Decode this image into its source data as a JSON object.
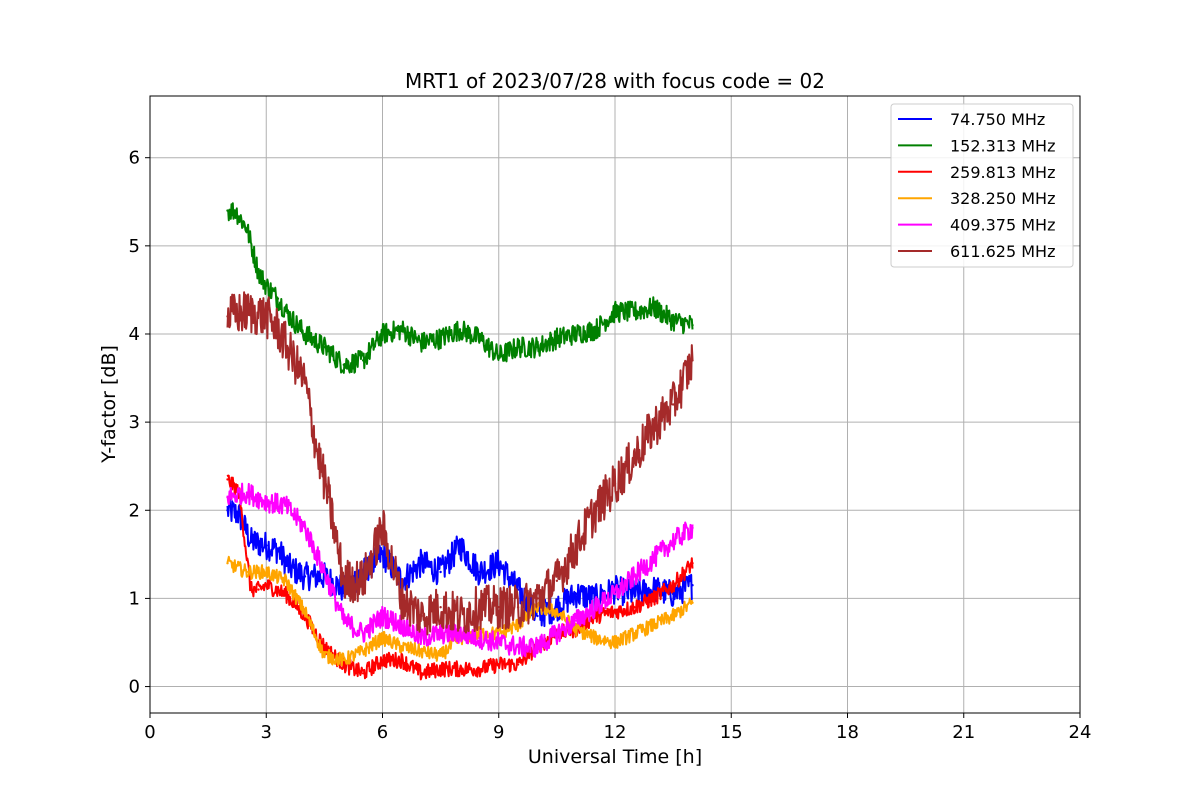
{
  "chart_data": {
    "type": "line",
    "title": "MRT1 of 2023/07/28 with focus code = 02",
    "xlabel": "Universal Time [h]",
    "ylabel": "Y-factor [dB]",
    "xlim": [
      0,
      24
    ],
    "ylim": [
      -0.3,
      6.7
    ],
    "xticks": [
      0,
      3,
      6,
      9,
      12,
      15,
      18,
      21,
      24
    ],
    "yticks": [
      0,
      1,
      2,
      3,
      4,
      5,
      6
    ],
    "grid": true,
    "legend_position": "top-right",
    "series": [
      {
        "name": "  74.750 MHz",
        "color": "#0000ff",
        "x": [
          2.0,
          2.3,
          2.6,
          3.0,
          3.3,
          3.6,
          4.0,
          4.5,
          5.0,
          5.5,
          6.0,
          6.5,
          7.0,
          7.5,
          8.0,
          8.5,
          9.0,
          9.5,
          10.0,
          10.5,
          11.0,
          11.5,
          12.0,
          12.5,
          13.0,
          13.5,
          14.0
        ],
        "y": [
          2.0,
          1.95,
          1.65,
          1.6,
          1.55,
          1.35,
          1.25,
          1.25,
          1.1,
          1.3,
          1.5,
          1.2,
          1.4,
          1.3,
          1.6,
          1.3,
          1.4,
          1.1,
          0.8,
          0.9,
          1.05,
          1.0,
          1.1,
          1.05,
          1.1,
          1.05,
          1.15
        ],
        "noise": 0.16
      },
      {
        "name": "152.313 MHz",
        "color": "#008000",
        "x": [
          2.0,
          2.2,
          2.5,
          2.8,
          3.0,
          3.3,
          3.6,
          4.0,
          4.5,
          5.0,
          5.5,
          6.0,
          6.5,
          7.0,
          7.5,
          8.0,
          8.5,
          9.0,
          9.5,
          10.0,
          10.5,
          11.0,
          11.5,
          12.0,
          12.5,
          13.0,
          13.5,
          14.0
        ],
        "y": [
          5.4,
          5.4,
          5.2,
          4.7,
          4.55,
          4.4,
          4.2,
          4.0,
          3.85,
          3.65,
          3.7,
          4.0,
          4.05,
          3.9,
          3.95,
          4.05,
          3.95,
          3.75,
          3.85,
          3.85,
          3.95,
          4.0,
          4.05,
          4.25,
          4.25,
          4.3,
          4.15,
          4.1
        ],
        "noise": 0.12
      },
      {
        "name": "259.813 MHz",
        "color": "#ff0000",
        "x": [
          2.0,
          2.3,
          2.6,
          2.8,
          3.0,
          3.5,
          4.0,
          4.5,
          5.0,
          5.5,
          6.0,
          6.5,
          7.0,
          7.5,
          8.0,
          8.5,
          9.0,
          9.5,
          10.0,
          10.5,
          11.0,
          11.5,
          12.0,
          12.5,
          13.0,
          13.5,
          14.0
        ],
        "y": [
          2.35,
          2.2,
          1.1,
          1.1,
          1.15,
          1.05,
          0.8,
          0.45,
          0.25,
          0.15,
          0.3,
          0.3,
          0.15,
          0.2,
          0.2,
          0.2,
          0.25,
          0.25,
          0.45,
          0.6,
          0.65,
          0.8,
          0.85,
          0.9,
          1.0,
          1.15,
          1.4
        ],
        "noise": 0.09
      },
      {
        "name": "328.250 MHz",
        "color": "#ffa500",
        "x": [
          2.0,
          2.5,
          3.0,
          3.5,
          4.0,
          4.5,
          5.0,
          5.5,
          6.0,
          6.5,
          7.0,
          7.5,
          8.0,
          8.5,
          9.0,
          9.5,
          10.0,
          10.5,
          11.0,
          11.5,
          12.0,
          12.5,
          13.0,
          13.5,
          14.0
        ],
        "y": [
          1.4,
          1.3,
          1.3,
          1.2,
          0.85,
          0.35,
          0.3,
          0.4,
          0.55,
          0.45,
          0.4,
          0.35,
          0.55,
          0.6,
          0.6,
          0.7,
          0.9,
          0.85,
          0.65,
          0.55,
          0.5,
          0.6,
          0.7,
          0.8,
          0.95
        ],
        "noise": 0.08
      },
      {
        "name": "409.375 MHz",
        "color": "#ff00ff",
        "x": [
          2.0,
          2.5,
          3.0,
          3.5,
          4.0,
          4.5,
          5.0,
          5.5,
          6.0,
          6.5,
          7.0,
          7.5,
          8.0,
          8.5,
          9.0,
          9.5,
          10.0,
          10.5,
          11.0,
          11.5,
          12.0,
          12.5,
          13.0,
          13.5,
          14.0
        ],
        "y": [
          2.15,
          2.2,
          2.1,
          2.05,
          1.8,
          1.3,
          0.75,
          0.6,
          0.8,
          0.7,
          0.55,
          0.6,
          0.6,
          0.55,
          0.5,
          0.45,
          0.45,
          0.6,
          0.75,
          0.9,
          1.05,
          1.25,
          1.45,
          1.65,
          1.8
        ],
        "noise": 0.12
      },
      {
        "name": "611.625 MHz",
        "color": "#a52a2a",
        "x": [
          2.0,
          2.5,
          3.0,
          3.3,
          3.6,
          4.0,
          4.3,
          4.6,
          5.0,
          5.5,
          6.0,
          6.5,
          7.0,
          7.5,
          8.0,
          8.5,
          9.0,
          9.5,
          10.0,
          10.5,
          11.0,
          11.5,
          12.0,
          12.5,
          13.0,
          13.5,
          14.0
        ],
        "y": [
          4.2,
          4.25,
          4.2,
          4.05,
          3.8,
          3.45,
          2.7,
          2.15,
          1.2,
          1.2,
          1.8,
          1.0,
          0.8,
          0.9,
          0.8,
          0.9,
          0.9,
          0.9,
          1.0,
          1.2,
          1.6,
          2.0,
          2.3,
          2.6,
          2.95,
          3.2,
          3.7
        ],
        "noise": 0.25
      }
    ]
  }
}
